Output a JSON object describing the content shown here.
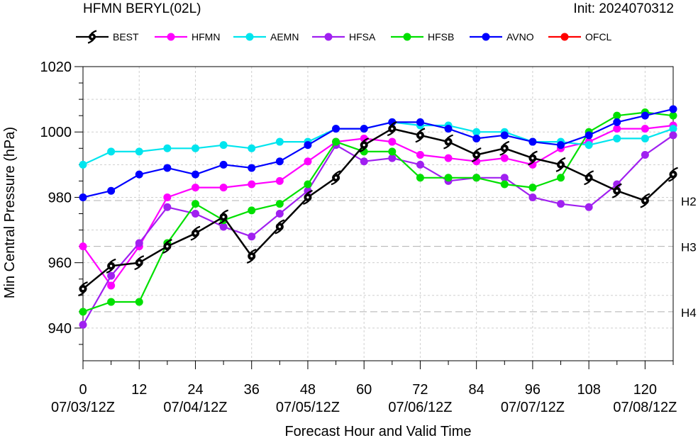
{
  "header": {
    "title": "HFMN BERYL(02L)",
    "init": "Init: 2024070312"
  },
  "chart_data": {
    "type": "line",
    "title": "HFMN BERYL(02L)",
    "xlabel": "Forecast Hour and Valid Time",
    "ylabel": "Min Central Pressure (hPa)",
    "xlim": [
      0,
      126
    ],
    "ylim": [
      930,
      1020
    ],
    "yticks": [
      940,
      960,
      980,
      1000,
      1020
    ],
    "xticks": [
      {
        "hour": 0,
        "label": "0",
        "date": "07/03/12Z"
      },
      {
        "hour": 12,
        "label": "12",
        "date": ""
      },
      {
        "hour": 24,
        "label": "24",
        "date": "07/04/12Z"
      },
      {
        "hour": 36,
        "label": "36",
        "date": ""
      },
      {
        "hour": 48,
        "label": "48",
        "date": "07/05/12Z"
      },
      {
        "hour": 60,
        "label": "60",
        "date": ""
      },
      {
        "hour": 72,
        "label": "72",
        "date": "07/06/12Z"
      },
      {
        "hour": 84,
        "label": "84",
        "date": ""
      },
      {
        "hour": 96,
        "label": "96",
        "date": "07/07/12Z"
      },
      {
        "hour": 108,
        "label": "108",
        "date": ""
      },
      {
        "hour": 120,
        "label": "120",
        "date": "07/08/12Z"
      }
    ],
    "reference_lines": [
      {
        "label": "H2",
        "value": 979
      },
      {
        "label": "H3",
        "value": 965
      },
      {
        "label": "H4",
        "value": 945
      }
    ],
    "grid": true,
    "legend_position": "top",
    "series": [
      {
        "name": "BEST",
        "color": "#000000",
        "marker": "hurricane-symbol",
        "x": [
          0,
          6,
          12,
          18,
          24,
          30,
          36,
          42,
          48,
          54,
          60,
          66,
          72,
          78,
          84,
          90,
          96,
          102,
          108,
          114,
          120,
          126
        ],
        "values": [
          952,
          959,
          960,
          965,
          969,
          974,
          962,
          971,
          980,
          986,
          996,
          1001,
          999,
          997,
          993,
          995,
          992,
          990,
          986,
          982,
          979,
          987
        ]
      },
      {
        "name": "HFMN",
        "color": "#ff00ff",
        "marker": "circle",
        "x": [
          0,
          6,
          12,
          18,
          24,
          30,
          36,
          42,
          48,
          54,
          60,
          66,
          72,
          78,
          84,
          90,
          96,
          102,
          108,
          114,
          120,
          126
        ],
        "values": [
          965,
          953,
          965,
          980,
          983,
          983,
          984,
          985,
          991,
          997,
          998,
          997,
          993,
          992,
          991,
          992,
          990,
          995,
          997,
          1001,
          1001,
          1002
        ]
      },
      {
        "name": "AEMN",
        "color": "#00e5ee",
        "marker": "circle",
        "x": [
          0,
          6,
          12,
          18,
          24,
          30,
          36,
          42,
          48,
          54,
          60,
          66,
          72,
          78,
          84,
          90,
          96,
          102,
          108,
          114,
          120,
          126
        ],
        "values": [
          990,
          994,
          994,
          995,
          995,
          996,
          995,
          997,
          997,
          1001,
          1001,
          1003,
          1002,
          1002,
          1000,
          1000,
          997,
          997,
          996,
          998,
          998,
          1001
        ]
      },
      {
        "name": "HFSA",
        "color": "#a020f0",
        "marker": "circle",
        "x": [
          0,
          6,
          12,
          18,
          24,
          30,
          36,
          42,
          48,
          54,
          60,
          66,
          72,
          78,
          84,
          90,
          96,
          102,
          108,
          114,
          120,
          126
        ],
        "values": [
          941,
          956,
          966,
          977,
          975,
          971,
          968,
          975,
          982,
          996,
          991,
          992,
          990,
          985,
          986,
          986,
          980,
          978,
          977,
          984,
          993,
          999
        ]
      },
      {
        "name": "HFSB",
        "color": "#00e000",
        "marker": "circle",
        "x": [
          0,
          6,
          12,
          18,
          24,
          30,
          36,
          42,
          48,
          54,
          60,
          66,
          72,
          78,
          84,
          90,
          96,
          102,
          108,
          114,
          120,
          126
        ],
        "values": [
          945,
          948,
          948,
          966,
          978,
          973,
          976,
          978,
          984,
          997,
          994,
          994,
          986,
          986,
          986,
          984,
          983,
          986,
          1000,
          1005,
          1006,
          1005
        ]
      },
      {
        "name": "AVNO",
        "color": "#0000ff",
        "marker": "circle",
        "x": [
          0,
          6,
          12,
          18,
          24,
          30,
          36,
          42,
          48,
          54,
          60,
          66,
          72,
          78,
          84,
          90,
          96,
          102,
          108,
          114,
          120,
          126
        ],
        "values": [
          980,
          982,
          987,
          989,
          987,
          990,
          989,
          991,
          996,
          1001,
          1001,
          1003,
          1003,
          1001,
          998,
          999,
          997,
          996,
          999,
          1003,
          1005,
          1007
        ]
      },
      {
        "name": "OFCL",
        "color": "#ff0000",
        "marker": "circle",
        "x": [],
        "values": []
      }
    ]
  }
}
